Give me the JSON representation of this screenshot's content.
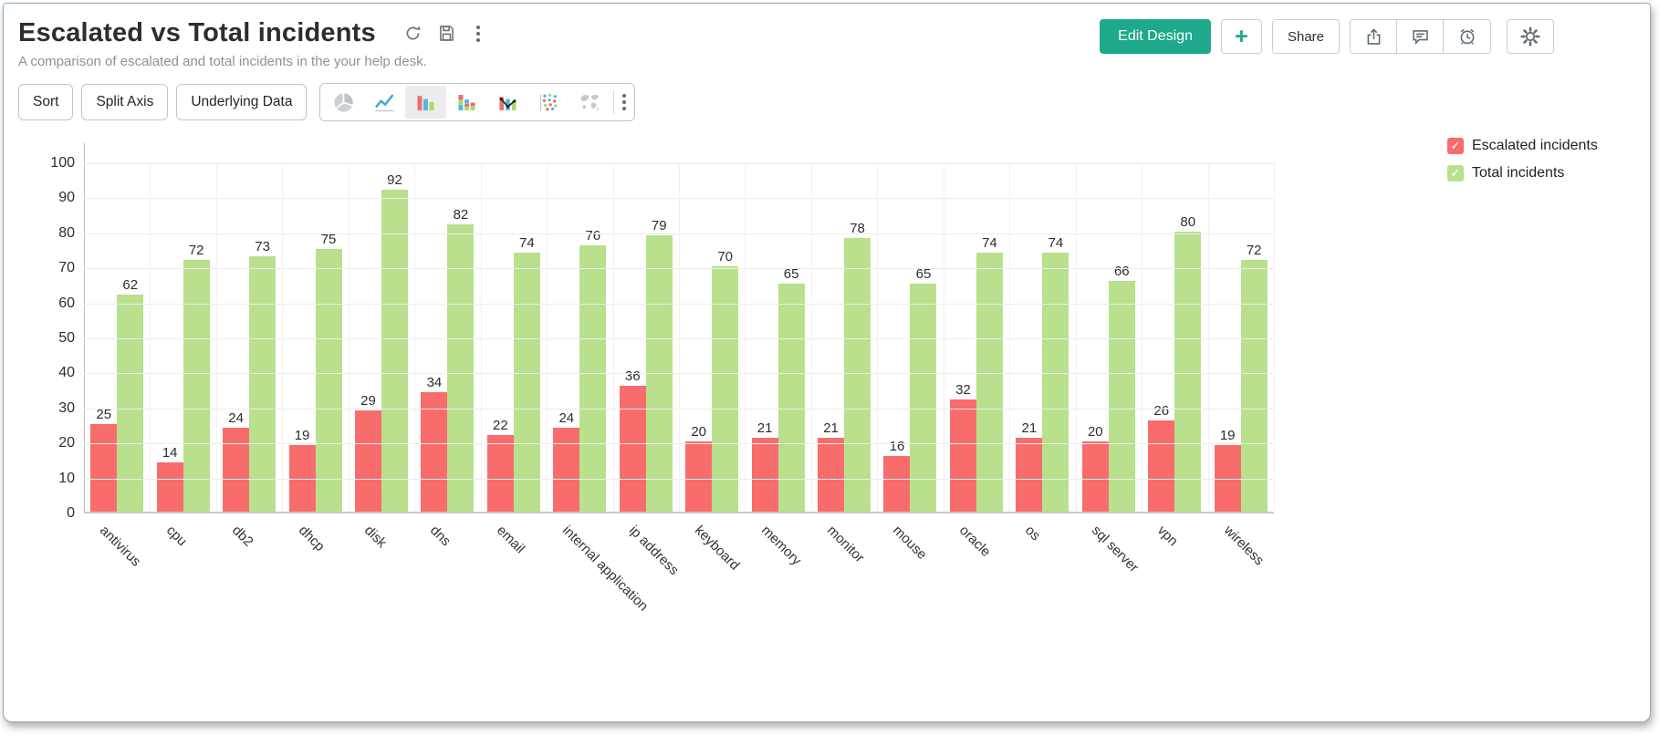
{
  "header": {
    "title": "Escalated vs Total incidents",
    "subtitle": "A comparison of escalated and total incidents in the your help desk.",
    "edit_design": "Edit Design",
    "add": "+",
    "share": "Share"
  },
  "toolbar": {
    "sort": "Sort",
    "split_axis": "Split Axis",
    "underlying_data": "Underlying Data",
    "chart_types": [
      "pie",
      "line",
      "bar",
      "stacked-bar",
      "combo",
      "scatter",
      "map"
    ],
    "selected_chart_type": "bar"
  },
  "colors": {
    "accent_teal": "#1ea98c",
    "bar_red": "#f96c6c",
    "bar_green": "#b9e08d",
    "gridline": "#ececec",
    "axis": "#b6babd"
  },
  "chart_data": {
    "type": "bar",
    "title": "Escalated vs Total incidents",
    "xlabel": "",
    "ylabel": "",
    "ylim": [
      0,
      100
    ],
    "ytick_step": 10,
    "grid": true,
    "legend_position": "top-right",
    "value_labels": true,
    "categories": [
      "antivirus",
      "cpu",
      "db2",
      "dhcp",
      "disk",
      "dns",
      "email",
      "internal application",
      "ip address",
      "keyboard",
      "memory",
      "monitor",
      "mouse",
      "oracle",
      "os",
      "sql server",
      "vpn",
      "wireless"
    ],
    "series": [
      {
        "name": "Escalated incidents",
        "color": "#f96c6c",
        "values": [
          25,
          14,
          24,
          19,
          29,
          34,
          22,
          24,
          36,
          20,
          21,
          21,
          16,
          32,
          21,
          20,
          26,
          19
        ]
      },
      {
        "name": "Total incidents",
        "color": "#b9e08d",
        "values": [
          62,
          72,
          73,
          75,
          92,
          82,
          74,
          76,
          79,
          70,
          65,
          78,
          65,
          74,
          74,
          66,
          80,
          72
        ]
      }
    ]
  }
}
